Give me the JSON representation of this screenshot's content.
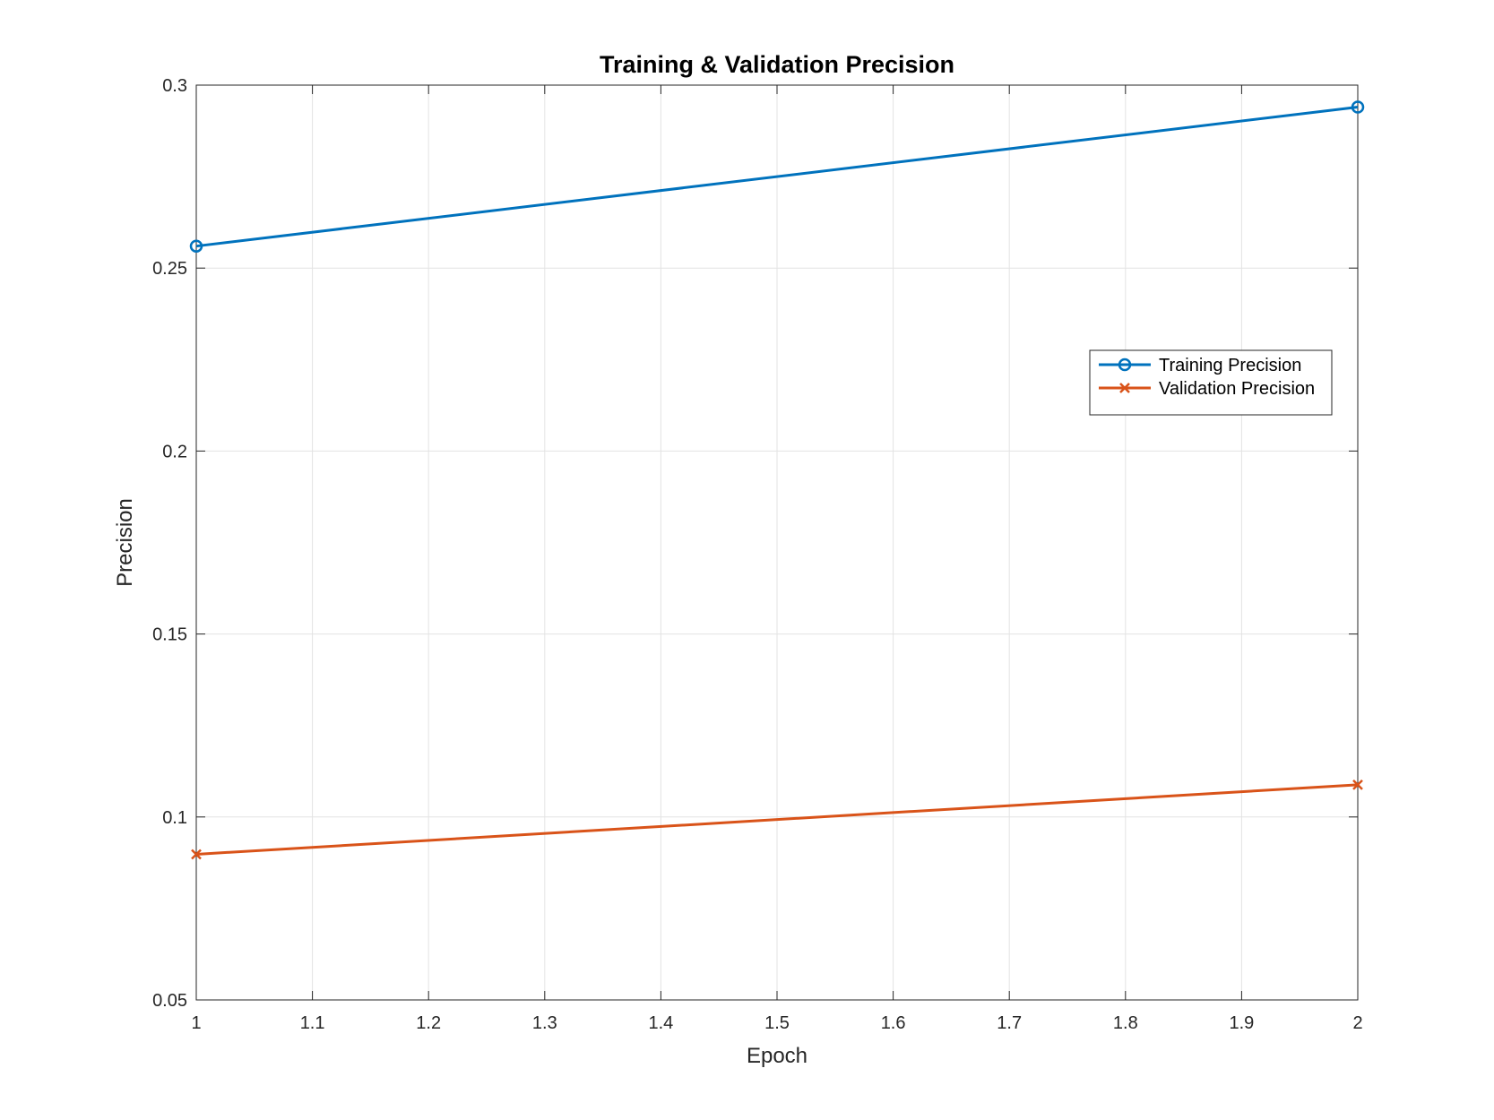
{
  "chart_data": {
    "type": "line",
    "title": "Training & Validation Precision",
    "xlabel": "Epoch",
    "ylabel": "Precision",
    "xlim": [
      1,
      2
    ],
    "ylim": [
      0.05,
      0.3
    ],
    "xticks": [
      1,
      1.1,
      1.2,
      1.3,
      1.4,
      1.5,
      1.6,
      1.7,
      1.8,
      1.9,
      2
    ],
    "xtick_labels": [
      "1",
      "1.1",
      "1.2",
      "1.3",
      "1.4",
      "1.5",
      "1.6",
      "1.7",
      "1.8",
      "1.9",
      "2"
    ],
    "yticks": [
      0.05,
      0.1,
      0.15,
      0.2,
      0.25,
      0.3
    ],
    "ytick_labels": [
      "0.05",
      "0.1",
      "0.15",
      "0.2",
      "0.25",
      "0.3"
    ],
    "grid": true,
    "legend_position": "upper-right",
    "series": [
      {
        "name": "Training Precision",
        "x": [
          1,
          2
        ],
        "values": [
          0.256,
          0.294
        ],
        "color": "#0072BD",
        "marker": "circle"
      },
      {
        "name": "Validation Precision",
        "x": [
          1,
          2
        ],
        "values": [
          0.0898,
          0.1088
        ],
        "color": "#D95319",
        "marker": "x"
      }
    ]
  }
}
